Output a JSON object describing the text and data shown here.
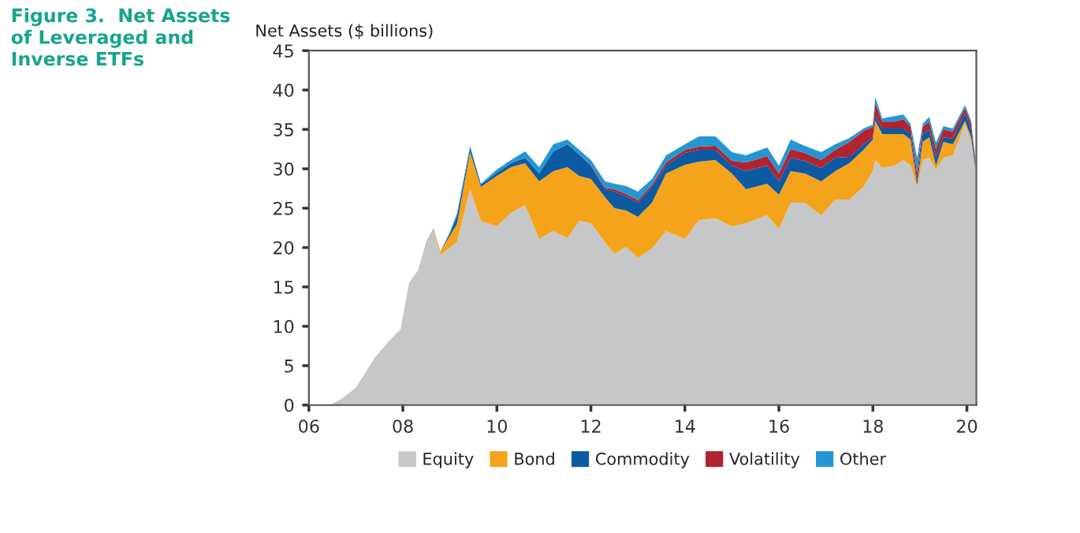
{
  "chart_data": {
    "type": "area",
    "stacked": true,
    "title": "Figure 3.  Net Assets\nof Leveraged and\nInverse ETFs",
    "ylabel": "Net Assets ($ billions)",
    "x": [
      2006.45,
      2006.7,
      2007.0,
      2007.4,
      2007.7,
      2007.95,
      2008.13,
      2008.32,
      2008.5,
      2008.65,
      2008.8,
      2009.0,
      2009.15,
      2009.43,
      2009.66,
      2010.0,
      2010.3,
      2010.6,
      2010.9,
      2011.2,
      2011.5,
      2011.75,
      2012.0,
      2012.3,
      2012.5,
      2012.75,
      2013.0,
      2013.3,
      2013.6,
      2014.0,
      2014.3,
      2014.65,
      2015.0,
      2015.3,
      2015.75,
      2016.0,
      2016.25,
      2016.55,
      2016.9,
      2017.2,
      2017.5,
      2017.8,
      2018.0,
      2018.05,
      2018.2,
      2018.45,
      2018.65,
      2018.8,
      2018.94,
      2019.06,
      2019.2,
      2019.34,
      2019.5,
      2019.7,
      2019.96,
      2020.09,
      2020.18
    ],
    "series": [
      {
        "name": "Equity",
        "color": "#c6c7c9",
        "values": [
          0,
          0.8,
          2.2,
          6.0,
          8.1,
          9.6,
          15.5,
          17.1,
          20.5,
          22.1,
          19.1,
          20.0,
          20.7,
          27.4,
          23.4,
          22.7,
          24.4,
          25.4,
          21.1,
          22.1,
          21.2,
          23.4,
          23.1,
          20.7,
          19.2,
          20.1,
          18.7,
          19.9,
          22.1,
          21.1,
          23.5,
          23.7,
          22.7,
          23.1,
          24.1,
          22.4,
          25.7,
          25.7,
          24.1,
          26.1,
          26.1,
          27.7,
          29.7,
          31.1,
          30.1,
          30.4,
          31.1,
          30.4,
          27.7,
          31.1,
          31.4,
          29.9,
          31.4,
          31.7,
          35.7,
          33.4,
          29.7
        ]
      },
      {
        "name": "Bond",
        "color": "#f5a31a",
        "values": [
          0,
          0,
          0,
          0,
          0,
          0,
          0,
          0,
          0.1,
          0.2,
          0.4,
          1.5,
          2.3,
          4.7,
          4.3,
          6.4,
          5.8,
          5.3,
          7.3,
          7.6,
          9.0,
          5.7,
          5.6,
          5.7,
          5.8,
          4.6,
          5.2,
          5.8,
          7.3,
          9.4,
          7.4,
          7.4,
          6.7,
          4.3,
          4.0,
          4.3,
          4.0,
          3.7,
          4.3,
          3.6,
          4.6,
          4.7,
          4.0,
          5.0,
          4.3,
          4.0,
          3.3,
          3.3,
          0.2,
          2.3,
          2.6,
          0.5,
          2.0,
          1.4,
          0.4,
          0.6,
          0.3
        ]
      },
      {
        "name": "Commodity",
        "color": "#0b5aa2",
        "values": [
          0,
          0,
          0,
          0,
          0,
          0,
          0,
          0,
          0,
          0,
          0,
          0.3,
          1.0,
          0.5,
          0.3,
          0.4,
          0.5,
          0.7,
          1.0,
          2.5,
          2.9,
          2.7,
          1.7,
          1.0,
          2.1,
          1.8,
          1.8,
          2.0,
          1.0,
          1.5,
          1.5,
          1.3,
          1.0,
          2.3,
          2.3,
          1.7,
          1.7,
          1.6,
          1.7,
          1.7,
          0.8,
          0.7,
          0.3,
          0.6,
          0.7,
          0.7,
          0.7,
          0.7,
          0.6,
          1.0,
          1.0,
          1.1,
          0.6,
          0.7,
          1.0,
          1.0,
          0.5
        ]
      },
      {
        "name": "Volatility",
        "color": "#b1232f",
        "values": [
          0,
          0,
          0,
          0,
          0,
          0,
          0,
          0,
          0,
          0,
          0,
          0,
          0,
          0,
          0,
          0,
          0,
          0,
          0,
          0,
          0,
          0,
          0.1,
          0.2,
          0.3,
          0.3,
          0.3,
          0.3,
          0.4,
          0.4,
          0.4,
          0.5,
          0.6,
          1.1,
          1.2,
          1.0,
          1.1,
          1.0,
          1.0,
          1.0,
          1.9,
          1.7,
          1.3,
          1.6,
          0.9,
          0.9,
          1.2,
          0.9,
          1.0,
          0.9,
          1.0,
          1.0,
          1.0,
          0.9,
          0.6,
          0.7,
          0.5
        ]
      },
      {
        "name": "Other",
        "color": "#2596d4",
        "values": [
          0,
          0,
          0,
          0,
          0,
          0,
          0,
          0,
          0.1,
          0.1,
          0,
          0.2,
          0.3,
          0.3,
          0.1,
          0.4,
          0.4,
          0.8,
          0.8,
          0.9,
          0.6,
          0.6,
          0.6,
          0.8,
          0.7,
          1.0,
          1.1,
          0.7,
          0.9,
          0.7,
          1.3,
          1.2,
          1.1,
          0.9,
          1.1,
          1.0,
          1.2,
          0.9,
          1.0,
          0.7,
          0.5,
          0.3,
          0.3,
          0.8,
          0.4,
          0.7,
          0.6,
          0.4,
          1.9,
          0.4,
          0.6,
          0.8,
          0.4,
          0.4,
          0.4,
          0.4,
          0.4
        ]
      }
    ],
    "xlim": [
      2006,
      2020.2
    ],
    "xticks": [
      {
        "value": 2006,
        "label": "06"
      },
      {
        "value": 2008,
        "label": "08"
      },
      {
        "value": 2010,
        "label": "10"
      },
      {
        "value": 2012,
        "label": "12"
      },
      {
        "value": 2014,
        "label": "14"
      },
      {
        "value": 2016,
        "label": "16"
      },
      {
        "value": 2018,
        "label": "18"
      },
      {
        "value": 2020,
        "label": "20"
      }
    ],
    "ylim": [
      0,
      45
    ],
    "yticks": [
      0,
      5,
      10,
      15,
      20,
      25,
      30,
      35,
      40,
      45
    ],
    "legend": "bottom"
  }
}
